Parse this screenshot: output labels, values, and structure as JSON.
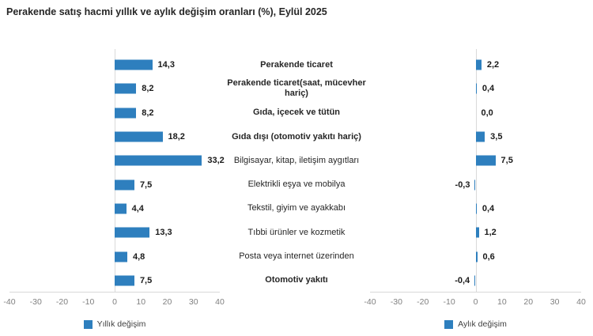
{
  "title": "Perakende satış hacmi yıllık ve aylık değişim oranları (%), Eylül 2025",
  "legend": {
    "annual": "Yıllık değişim",
    "monthly": "Aylık değişim"
  },
  "colors": {
    "bar": "#2e7fbe",
    "axis_line": "#d9d9d9",
    "tick_text": "#808080",
    "value_text": "#1a1a1a",
    "category_text": "#262626"
  },
  "chart_data": {
    "type": "bar",
    "orientation": "horizontal",
    "title": "Perakende satış hacmi yıllık ve aylık değişim oranları (%), Eylül 2025",
    "categories": [
      "Perakende ticaret",
      "Perakende ticaret(saat, mücevher hariç)",
      "Gıda, içecek ve tütün",
      "Gıda dışı (otomotiv yakıtı hariç)",
      "Bilgisayar, kitap, iletişim aygıtları",
      "Elektrikli eşya ve mobilya",
      "Tekstil, giyim ve ayakkabı",
      "Tıbbi ürünler ve kozmetik",
      "Posta veya internet üzerinden",
      "Otomotiv yakıtı"
    ],
    "series": [
      {
        "name": "Yıllık değişim",
        "values": [
          14.3,
          8.2,
          8.2,
          18.2,
          33.2,
          7.5,
          4.4,
          13.3,
          4.8,
          7.5
        ]
      },
      {
        "name": "Aylık değişim",
        "values": [
          2.2,
          0.4,
          0.0,
          3.5,
          7.5,
          -0.3,
          0.4,
          1.2,
          0.6,
          -0.4
        ]
      }
    ],
    "xlim": [
      -40,
      40
    ],
    "x_ticks": [
      "-40",
      "-30",
      "-20",
      "-10",
      "0",
      "10",
      "20",
      "30",
      "40"
    ],
    "grid": false,
    "legend_position": "bottom",
    "rows": [
      {
        "category": "Perakende ticaret",
        "bold": true,
        "annual": 14.3,
        "annual_label": "14,3",
        "monthly": 2.2,
        "monthly_label": "2,2"
      },
      {
        "category": "Perakende ticaret(saat, mücevher hariç)",
        "bold": true,
        "annual": 8.2,
        "annual_label": "8,2",
        "monthly": 0.4,
        "monthly_label": "0,4"
      },
      {
        "category": "Gıda, içecek ve tütün",
        "bold": true,
        "annual": 8.2,
        "annual_label": "8,2",
        "monthly": 0.0,
        "monthly_label": "0,0"
      },
      {
        "category": "Gıda dışı (otomotiv yakıtı hariç)",
        "bold": true,
        "annual": 18.2,
        "annual_label": "18,2",
        "monthly": 3.5,
        "monthly_label": "3,5"
      },
      {
        "category": "Bilgisayar, kitap, iletişim aygıtları",
        "bold": false,
        "annual": 33.2,
        "annual_label": "33,2",
        "monthly": 7.5,
        "monthly_label": "7,5"
      },
      {
        "category": "Elektrikli eşya ve mobilya",
        "bold": false,
        "annual": 7.5,
        "annual_label": "7,5",
        "monthly": -0.3,
        "monthly_label": "-0,3"
      },
      {
        "category": "Tekstil, giyim ve ayakkabı",
        "bold": false,
        "annual": 4.4,
        "annual_label": "4,4",
        "monthly": 0.4,
        "monthly_label": "0,4"
      },
      {
        "category": "Tıbbi ürünler ve kozmetik",
        "bold": false,
        "annual": 13.3,
        "annual_label": "13,3",
        "monthly": 1.2,
        "monthly_label": "1,2"
      },
      {
        "category": "Posta veya internet üzerinden",
        "bold": false,
        "annual": 4.8,
        "annual_label": "4,8",
        "monthly": 0.6,
        "monthly_label": "0,6"
      },
      {
        "category": "Otomotiv yakıtı",
        "bold": true,
        "annual": 7.5,
        "annual_label": "7,5",
        "monthly": -0.4,
        "monthly_label": "-0,4"
      }
    ]
  }
}
